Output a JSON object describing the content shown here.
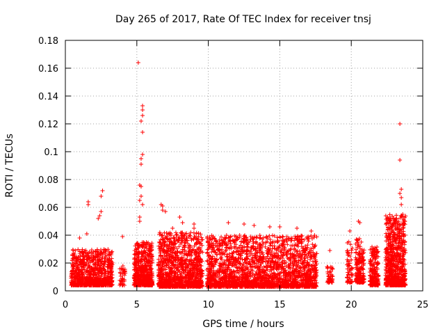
{
  "chart_data": {
    "type": "scatter",
    "title": "Day 265 of 2017, Rate Of TEC Index for receiver tnsj",
    "xlabel": "GPS time / hours",
    "ylabel": "ROTI / TECUs",
    "xlim": [
      0,
      25
    ],
    "ylim": [
      0,
      0.18
    ],
    "xticks": [
      0,
      5,
      10,
      15,
      20,
      25
    ],
    "yticks": [
      0,
      0.02,
      0.04,
      0.06,
      0.08,
      0.1,
      0.12,
      0.14,
      0.16,
      0.18
    ],
    "grid": true,
    "marker": "+",
    "color": "#ff0000",
    "series": [
      {
        "name": "ROTI",
        "points": [
          [
            1.6,
            0.064
          ],
          [
            1.6,
            0.062
          ],
          [
            2.6,
            0.072
          ],
          [
            2.5,
            0.068
          ],
          [
            2.5,
            0.057
          ],
          [
            2.4,
            0.054
          ],
          [
            2.3,
            0.052
          ],
          [
            1.0,
            0.038
          ],
          [
            1.5,
            0.041
          ],
          [
            4.0,
            0.039
          ],
          [
            5.1,
            0.164
          ],
          [
            5.4,
            0.133
          ],
          [
            5.4,
            0.13
          ],
          [
            5.4,
            0.126
          ],
          [
            5.3,
            0.122
          ],
          [
            5.4,
            0.114
          ],
          [
            5.4,
            0.098
          ],
          [
            5.3,
            0.095
          ],
          [
            5.3,
            0.091
          ],
          [
            5.2,
            0.076
          ],
          [
            5.3,
            0.075
          ],
          [
            5.3,
            0.068
          ],
          [
            5.2,
            0.065
          ],
          [
            5.4,
            0.062
          ],
          [
            5.2,
            0.053
          ],
          [
            5.2,
            0.05
          ],
          [
            6.7,
            0.062
          ],
          [
            6.8,
            0.061
          ],
          [
            6.8,
            0.058
          ],
          [
            7.0,
            0.057
          ],
          [
            7.5,
            0.045
          ],
          [
            8.0,
            0.053
          ],
          [
            8.2,
            0.049
          ],
          [
            9.0,
            0.048
          ],
          [
            9.0,
            0.045
          ],
          [
            11.4,
            0.049
          ],
          [
            12.5,
            0.048
          ],
          [
            13.2,
            0.047
          ],
          [
            14.3,
            0.046
          ],
          [
            15.0,
            0.046
          ],
          [
            16.2,
            0.045
          ],
          [
            17.2,
            0.043
          ],
          [
            18.5,
            0.029
          ],
          [
            19.9,
            0.043
          ],
          [
            20.5,
            0.05
          ],
          [
            20.6,
            0.049
          ],
          [
            23.4,
            0.12
          ],
          [
            23.4,
            0.094
          ],
          [
            23.5,
            0.073
          ],
          [
            23.4,
            0.07
          ],
          [
            23.5,
            0.067
          ],
          [
            23.5,
            0.062
          ],
          [
            23.6,
            0.055
          ]
        ],
        "clusters": [
          {
            "x": [
              0.4,
              3.3
            ],
            "ymin": 0.004,
            "ymax": 0.03,
            "n": 900
          },
          {
            "x": [
              3.8,
              4.2
            ],
            "ymin": 0.004,
            "ymax": 0.02,
            "n": 40
          },
          {
            "x": [
              4.8,
              6.1
            ],
            "ymin": 0.004,
            "ymax": 0.035,
            "n": 500
          },
          {
            "x": [
              6.5,
              9.6
            ],
            "ymin": 0.003,
            "ymax": 0.042,
            "n": 1100
          },
          {
            "x": [
              9.9,
              17.6
            ],
            "ymin": 0.003,
            "ymax": 0.04,
            "n": 2200
          },
          {
            "x": [
              18.3,
              18.7
            ],
            "ymin": 0.006,
            "ymax": 0.02,
            "n": 50
          },
          {
            "x": [
              19.7,
              20.1
            ],
            "ymin": 0.006,
            "ymax": 0.038,
            "n": 60
          },
          {
            "x": [
              20.3,
              20.9
            ],
            "ymin": 0.006,
            "ymax": 0.038,
            "n": 200
          },
          {
            "x": [
              21.3,
              21.9
            ],
            "ymin": 0.004,
            "ymax": 0.032,
            "n": 200
          },
          {
            "x": [
              22.4,
              23.8
            ],
            "ymin": 0.004,
            "ymax": 0.055,
            "n": 800
          }
        ]
      }
    ]
  }
}
